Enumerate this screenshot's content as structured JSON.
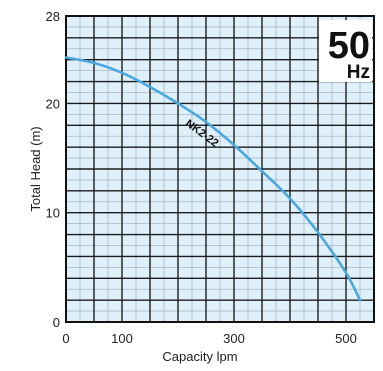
{
  "chart_data": {
    "type": "line",
    "title": "",
    "xlabel": "Capacity lpm",
    "ylabel": "Total Head (m)",
    "xlim": [
      0,
      550
    ],
    "ylim": [
      0,
      28
    ],
    "x_tick_labels": [
      "0",
      "100",
      "300",
      "500"
    ],
    "x_tick_values": [
      0,
      100,
      300,
      500
    ],
    "y_tick_labels": [
      "0",
      "10",
      "20",
      "28"
    ],
    "y_tick_values": [
      0,
      10,
      20,
      28
    ],
    "grid": true,
    "frequency_badge": {
      "value": "50",
      "unit": "Hz"
    },
    "series": [
      {
        "name": "NK2-22",
        "color": "#4aa8de",
        "x": [
          0,
          50,
          100,
          150,
          200,
          250,
          300,
          350,
          400,
          450,
          500,
          525
        ],
        "y": [
          24.2,
          23.7,
          22.8,
          21.5,
          20.0,
          18.3,
          16.2,
          13.8,
          11.3,
          8.2,
          4.5,
          2.0
        ]
      }
    ]
  }
}
